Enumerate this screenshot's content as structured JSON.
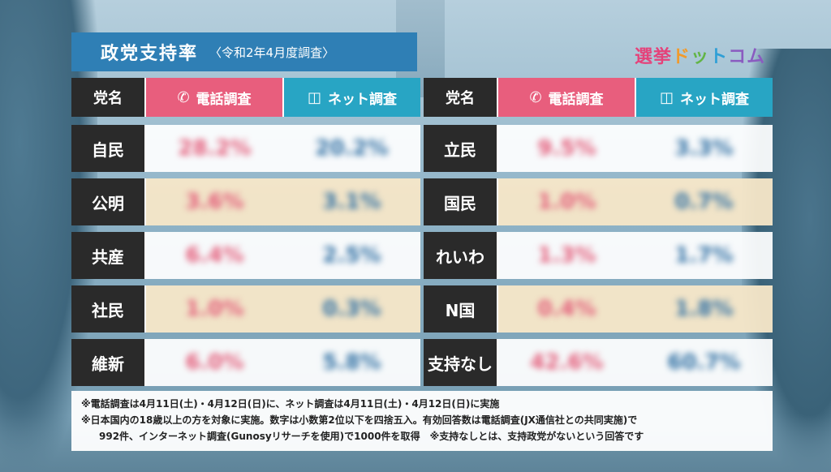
{
  "title": {
    "main": "政党支持率",
    "sub": "〈令和2年4月度調査〉"
  },
  "logo": [
    "選",
    "挙",
    "ド",
    "ッ",
    "ト",
    "コム"
  ],
  "headers": {
    "party": "党名",
    "phone": "電話調査",
    "net": "ネット調査"
  },
  "left_rows": [
    {
      "party": "自民",
      "phone": "28.2%",
      "net": "20.2%"
    },
    {
      "party": "公明",
      "phone": "3.6%",
      "net": "3.1%"
    },
    {
      "party": "共産",
      "phone": "6.4%",
      "net": "2.5%"
    },
    {
      "party": "社民",
      "phone": "1.0%",
      "net": "0.3%"
    },
    {
      "party": "維新",
      "phone": "6.0%",
      "net": "5.8%"
    }
  ],
  "right_rows": [
    {
      "party": "立民",
      "phone": "9.5%",
      "net": "3.3%"
    },
    {
      "party": "国民",
      "phone": "1.0%",
      "net": "0.7%"
    },
    {
      "party": "れいわ",
      "phone": "1.3%",
      "net": "1.7%"
    },
    {
      "party": "N国",
      "phone": "0.4%",
      "net": "1.8%"
    },
    {
      "party": "支持なし",
      "phone": "42.6%",
      "net": "60.7%"
    }
  ],
  "notes": {
    "line1": "※電話調査は4月11日(土)・4月12日(日)に、ネット調査は4月11日(土)・4月12日(日)に実施",
    "line2": "※日本国内の18歳以上の方を対象に実施。数字は小数第2位以下を四捨五入。有効回答数は電話調査(JX通信社との共同実施)で",
    "line3": "992件、インターネット調査(Gunosyリサーチを使用)で1000件を取得　※支持なしとは、支持政党がないという回答です"
  },
  "colors": {
    "title_bg": "#2f7fb5",
    "phone": "#e85e7d",
    "net": "#28a5c4",
    "alt_row": "#f7e7c8"
  },
  "icons": {
    "phone": "phone-icon",
    "net": "smartphone-icon"
  }
}
